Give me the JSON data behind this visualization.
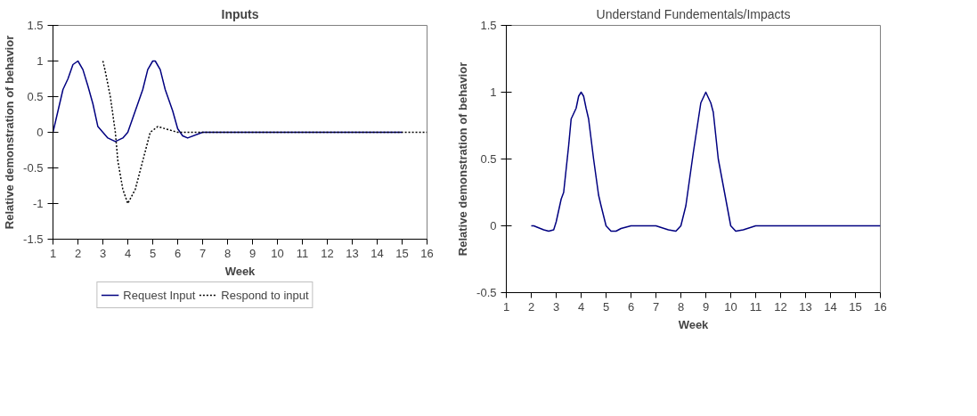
{
  "chart_data": [
    {
      "type": "line",
      "title": "Inputs",
      "xlabel": "Week",
      "ylabel": "Relative demonstration of behavior",
      "xlim": [
        1,
        16
      ],
      "xticks": [
        1,
        2,
        3,
        4,
        5,
        6,
        7,
        8,
        9,
        10,
        11,
        12,
        13,
        14,
        15,
        16
      ],
      "ylim": [
        -1.5,
        1.5
      ],
      "yticks": [
        -1.5,
        -1,
        -0.5,
        0,
        0.5,
        1,
        1.5
      ],
      "grid": false,
      "legend": "bottom",
      "marker": "none",
      "series": [
        {
          "name": "Request Input",
          "color": "#000080",
          "line_style": "solid",
          "x": [
            1,
            1.2,
            1.4,
            1.6,
            1.8,
            2,
            2.2,
            2.4,
            2.6,
            2.8,
            3,
            3.2,
            3.5,
            3.8,
            4,
            4.2,
            4.4,
            4.6,
            4.8,
            5,
            5.1,
            5.3,
            5.5,
            5.8,
            6,
            6.2,
            6.4,
            7,
            15
          ],
          "values": [
            0,
            0.3,
            0.6,
            0.75,
            0.95,
            1,
            0.88,
            0.65,
            0.4,
            0.08,
            0,
            -0.08,
            -0.13,
            -0.08,
            0,
            0.2,
            0.4,
            0.6,
            0.88,
            1,
            1,
            0.88,
            0.6,
            0.3,
            0.05,
            -0.05,
            -0.08,
            0,
            0
          ]
        },
        {
          "name": "Respond to input",
          "color": "#000000",
          "line_style": "dotted",
          "x": [
            3,
            3.1,
            3.3,
            3.5,
            3.6,
            3.8,
            4,
            4.3,
            4.6,
            4.9,
            5.2,
            5.5,
            6,
            16
          ],
          "values": [
            1,
            0.85,
            0.5,
            0,
            -0.4,
            -0.8,
            -1,
            -0.8,
            -0.4,
            0,
            0.08,
            0.05,
            0,
            0
          ]
        }
      ]
    },
    {
      "type": "line",
      "title": "Understand Fundementals/Impacts",
      "xlabel": "Week",
      "ylabel": "Relative demonstration of behavior",
      "xlim": [
        1,
        16
      ],
      "xticks": [
        1,
        2,
        3,
        4,
        5,
        6,
        7,
        8,
        9,
        10,
        11,
        12,
        13,
        14,
        15,
        16
      ],
      "ylim": [
        -0.5,
        1.5
      ],
      "yticks": [
        -0.5,
        0,
        0.5,
        1,
        1.5
      ],
      "grid": false,
      "legend": false,
      "marker": "none",
      "series": [
        {
          "color": "#000080",
          "line_style": "solid",
          "x": [
            2,
            2.1,
            2.5,
            2.7,
            2.9,
            3,
            3.2,
            3.3,
            3.5,
            3.6,
            3.8,
            3.9,
            4,
            4.1,
            4.2,
            4.3,
            4.5,
            4.7,
            4.8,
            5,
            5.2,
            5.4,
            5.6,
            6,
            7,
            7.5,
            7.8,
            8,
            8.2,
            8.5,
            8.8,
            9,
            9.2,
            9.3,
            9.5,
            9.7,
            9.8,
            10,
            10.2,
            10.5,
            11,
            16
          ],
          "values": [
            0,
            0,
            -0.03,
            -0.04,
            -0.03,
            0.03,
            0.2,
            0.25,
            0.6,
            0.8,
            0.88,
            0.97,
            1,
            0.97,
            0.88,
            0.8,
            0.5,
            0.23,
            0.15,
            0,
            -0.04,
            -0.04,
            -0.02,
            0,
            0,
            -0.03,
            -0.04,
            0,
            0.15,
            0.55,
            0.92,
            1,
            0.92,
            0.85,
            0.5,
            0.3,
            0.2,
            0,
            -0.04,
            -0.03,
            0,
            0
          ]
        }
      ]
    }
  ]
}
